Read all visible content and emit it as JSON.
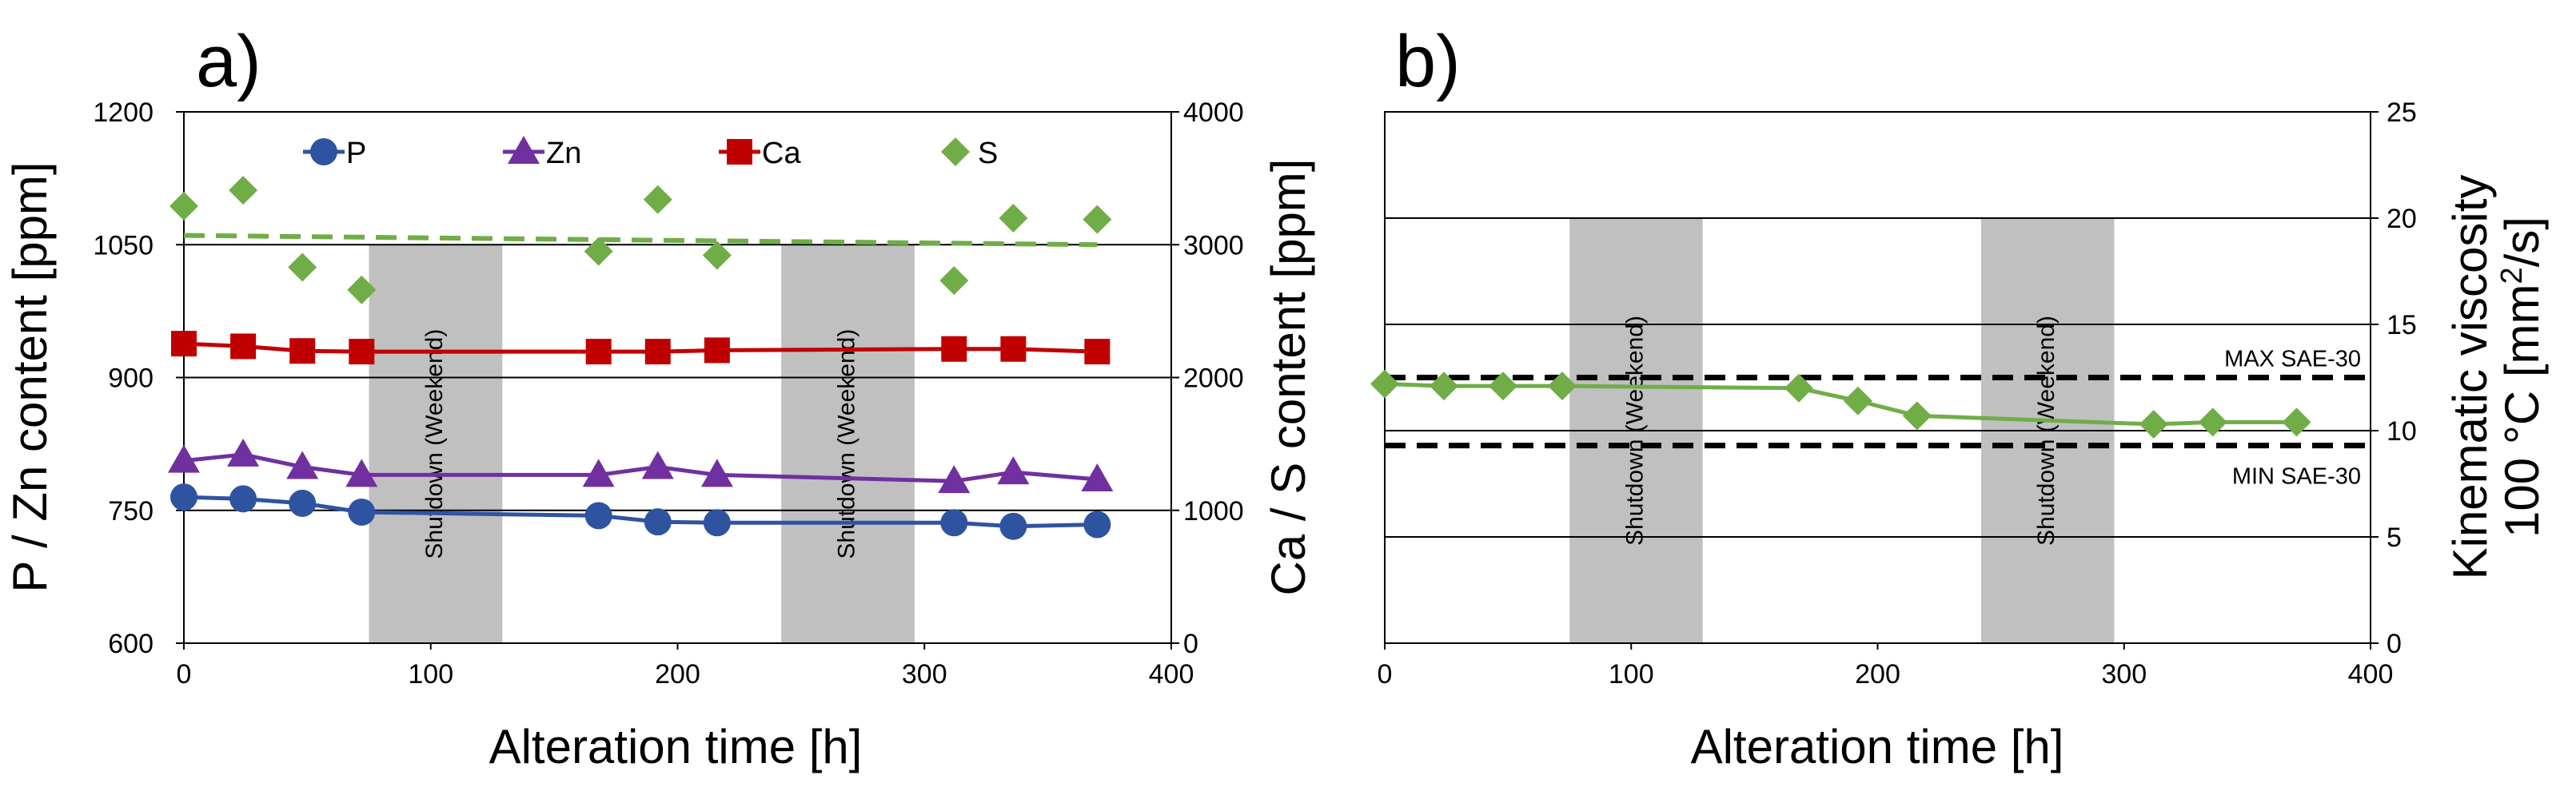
{
  "chart_data": [
    {
      "type": "line",
      "panel_label": "a)",
      "xlabel": "Alteration time [h]",
      "ylabel_left": "P / Zn content [ppm]",
      "ylabel_right": "Ca / S content [ppm]",
      "xlim": [
        0,
        400
      ],
      "ylim_left": [
        600,
        1200
      ],
      "ylim_right": [
        0,
        4000
      ],
      "xticks": [
        "0",
        "100",
        "200",
        "300",
        "400"
      ],
      "yticks_left": [
        "600",
        "750",
        "900",
        "1050",
        "1200"
      ],
      "yticks_right": [
        "0",
        "1000",
        "2000",
        "3000",
        "4000"
      ],
      "grid_y_left": [
        600,
        750,
        900,
        1050,
        1200
      ],
      "shaded_regions": [
        {
          "label": "Shutdown (Weekend)",
          "x": [
            75,
            129
          ]
        },
        {
          "label": "Shutdown (Weekend)",
          "x": [
            242,
            296
          ]
        }
      ],
      "legend": [
        "P",
        "Zn",
        "Ca",
        "S"
      ],
      "series": [
        {
          "name": "P",
          "axis": "left",
          "color": "#2E54A1",
          "marker": "circle",
          "line": "solid",
          "points": [
            [
              0,
              765
            ],
            [
              24,
              763
            ],
            [
              48,
              758
            ],
            [
              72,
              748
            ],
            [
              168,
              744
            ],
            [
              192,
              737
            ],
            [
              216,
              736
            ],
            [
              312,
              736
            ],
            [
              336,
              732
            ],
            [
              370,
              734
            ]
          ]
        },
        {
          "name": "Zn",
          "axis": "left",
          "color": "#7030A0",
          "marker": "triangle",
          "line": "solid",
          "points": [
            [
              0,
              806
            ],
            [
              24,
              813
            ],
            [
              48,
              799
            ],
            [
              72,
              790
            ],
            [
              168,
              790
            ],
            [
              192,
              799
            ],
            [
              216,
              790
            ],
            [
              312,
              783
            ],
            [
              336,
              793
            ],
            [
              370,
              785
            ]
          ]
        },
        {
          "name": "Ca",
          "axis": "right",
          "color": "#C00000",
          "marker": "square",
          "line": "solid",
          "points": [
            [
              0,
              2255
            ],
            [
              24,
              2235
            ],
            [
              48,
              2200
            ],
            [
              72,
              2195
            ],
            [
              168,
              2195
            ],
            [
              192,
              2195
            ],
            [
              216,
              2205
            ],
            [
              312,
              2215
            ],
            [
              336,
              2215
            ],
            [
              370,
              2195
            ]
          ]
        },
        {
          "name": "S",
          "axis": "right",
          "color": "#70AD47",
          "marker": "diamond",
          "line": "none",
          "points": [
            [
              0,
              3290
            ],
            [
              24,
              3410
            ],
            [
              48,
              2830
            ],
            [
              72,
              2660
            ],
            [
              168,
              2950
            ],
            [
              192,
              3340
            ],
            [
              216,
              2920
            ],
            [
              312,
              2730
            ],
            [
              336,
              3200
            ],
            [
              370,
              3190
            ]
          ]
        },
        {
          "name": "S trend",
          "axis": "right",
          "color": "#70AD47",
          "marker": "none",
          "line": "dashed",
          "points": [
            [
              0,
              3070
            ],
            [
              370,
              3000
            ]
          ]
        }
      ]
    },
    {
      "type": "line",
      "panel_label": "b)",
      "xlabel": "Alteration time [h]",
      "ylabel_right_line1": "Kinematic viscosity",
      "ylabel_right_line2_prefix": "100 °C [mm",
      "ylabel_right_line2_sup": "2",
      "ylabel_right_line2_suffix": "/s]",
      "xlim": [
        0,
        400
      ],
      "ylim": [
        0,
        25
      ],
      "xticks": [
        "0",
        "100",
        "200",
        "300",
        "400"
      ],
      "yticks_right": [
        "0",
        "5",
        "10",
        "15",
        "20",
        "25"
      ],
      "grid_y": [
        0,
        5,
        10,
        15,
        20,
        25
      ],
      "shaded_regions": [
        {
          "label": "Shutdown (Weekend)",
          "x": [
            75,
            129
          ]
        },
        {
          "label": "Shutdown (Weekend)",
          "x": [
            242,
            296
          ]
        }
      ],
      "reference_lines": [
        {
          "label": "MAX SAE-30",
          "y": 12.5
        },
        {
          "label": "MIN SAE-30",
          "y": 9.3
        }
      ],
      "series": [
        {
          "name": "Kinematic viscosity",
          "color": "#70AD47",
          "marker": "diamond",
          "line": "solid",
          "points": [
            [
              0,
              12.2
            ],
            [
              24,
              12.1
            ],
            [
              48,
              12.1
            ],
            [
              72,
              12.1
            ],
            [
              168,
              12.0
            ],
            [
              192,
              11.4
            ],
            [
              216,
              10.7
            ],
            [
              312,
              10.3
            ],
            [
              336,
              10.4
            ],
            [
              370,
              10.4
            ]
          ]
        }
      ]
    }
  ]
}
